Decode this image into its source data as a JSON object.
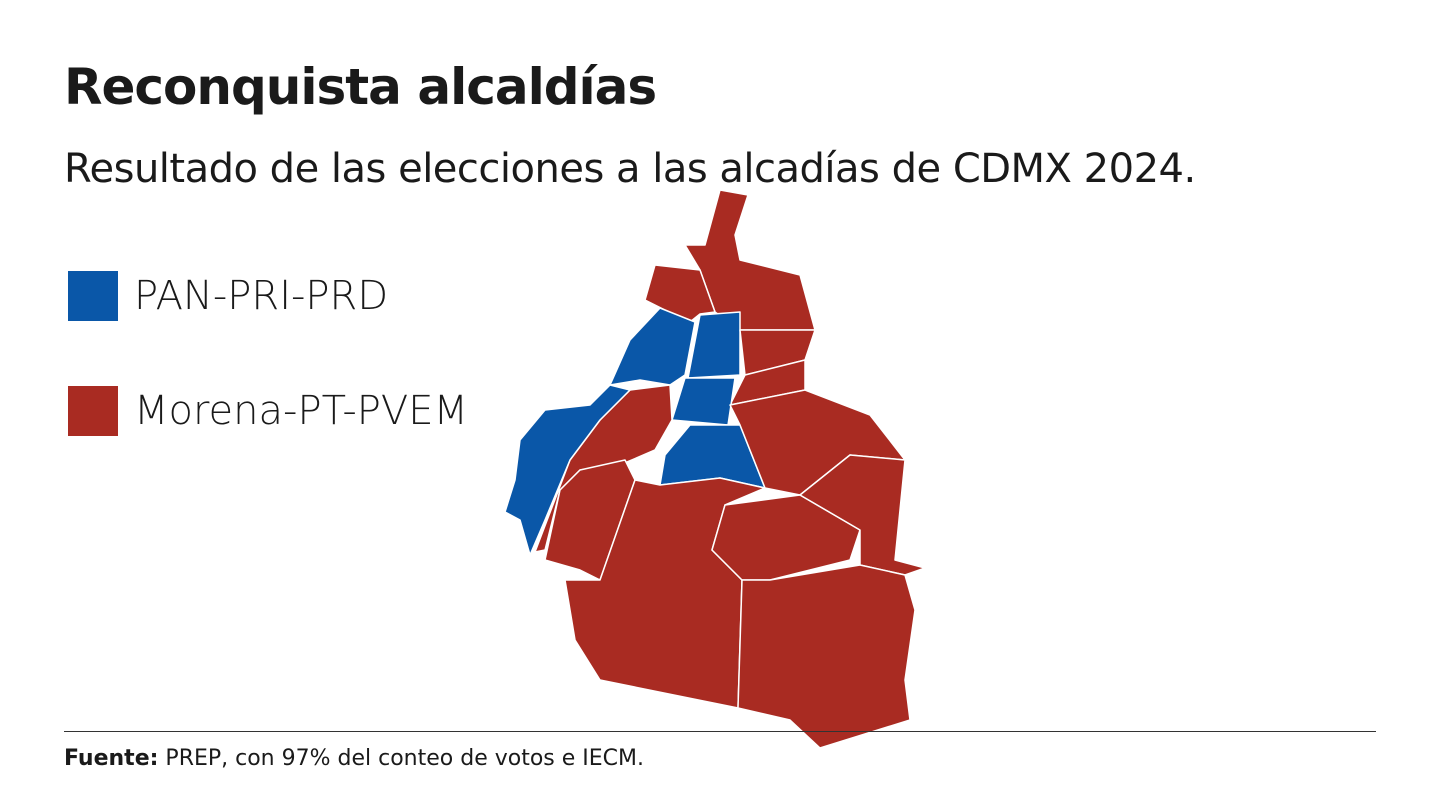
{
  "header": {
    "title": "Reconquista alcaldías",
    "subtitle": "Resultado de las elecciones a las alcadías de CDMX 2024."
  },
  "legend": [
    {
      "label": "PAN-PRI-PRD",
      "color": "#0a57a8"
    },
    {
      "label": "Morena-PT-PVEM",
      "color": "#a92b22"
    }
  ],
  "footer": {
    "source_label": "Fuente:",
    "source_text": "PREP, con 97% del conteo de votos e IECM."
  }
}
